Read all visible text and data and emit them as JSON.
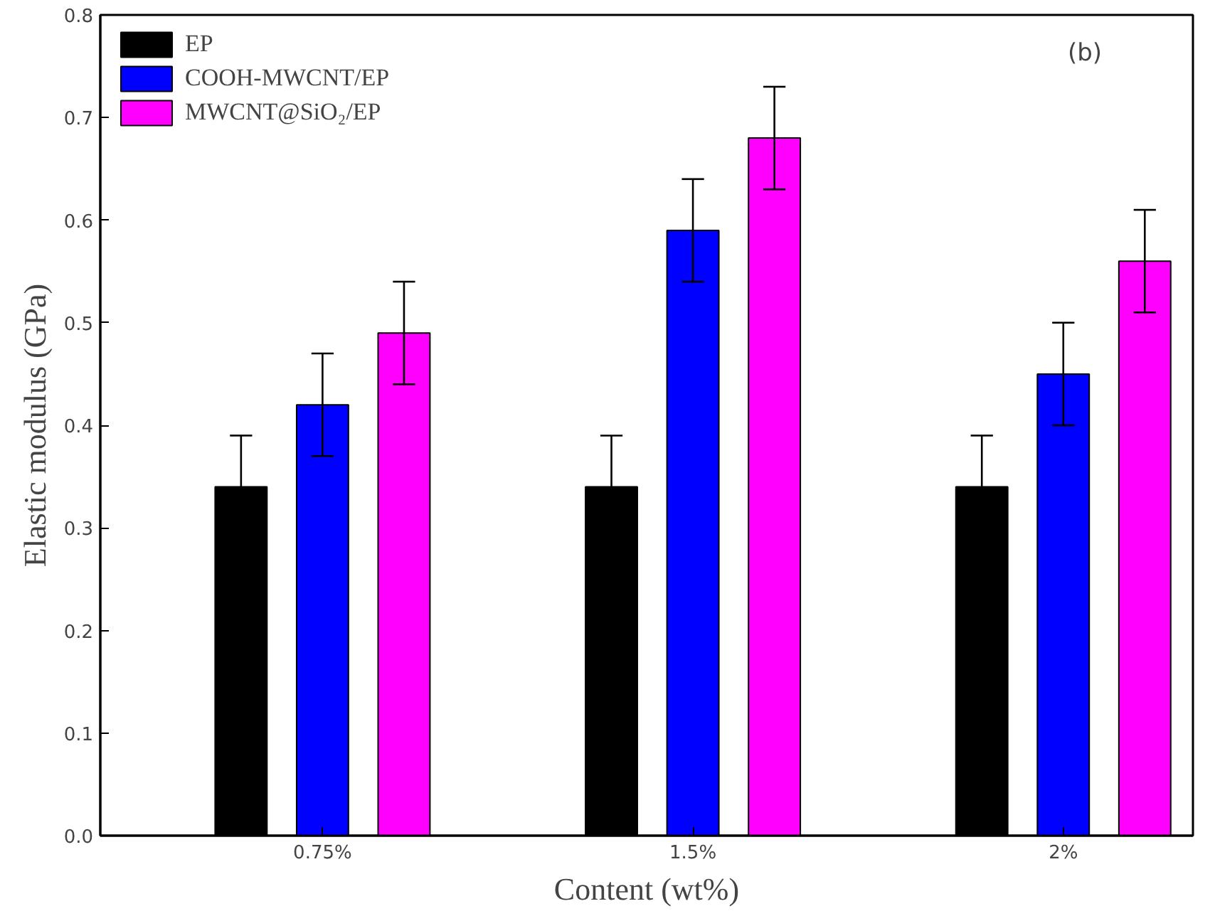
{
  "chart_data": {
    "type": "bar",
    "xlabel": "Content (wt%)",
    "ylabel": "Elastic modulus (GPa)",
    "categories": [
      "0.75%",
      "1.5%",
      "2%"
    ],
    "series": [
      {
        "name": "EP",
        "color": "#000000",
        "values": [
          0.34,
          0.34,
          0.34
        ],
        "errors": [
          0.05,
          0.05,
          0.05
        ]
      },
      {
        "name": "COOH-MWCNT/EP",
        "color": "#0000ff",
        "values": [
          0.42,
          0.59,
          0.45
        ],
        "errors": [
          0.05,
          0.05,
          0.05
        ]
      },
      {
        "name": "MWCNT@SiO₂/EP",
        "color": "#ff00ff",
        "values": [
          0.49,
          0.68,
          0.56
        ],
        "errors": [
          0.05,
          0.05,
          0.05
        ]
      }
    ],
    "ylim": [
      0,
      0.8
    ],
    "yticks": [
      {
        "value": 0,
        "label": "0.0"
      },
      0.1,
      0.2,
      0.3,
      0.4,
      0.5,
      0.6,
      0.7,
      0.8
    ],
    "annotations": [
      "(b)"
    ],
    "legend": "top left",
    "grid": false
  }
}
